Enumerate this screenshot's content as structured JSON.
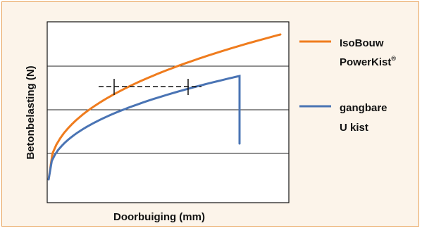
{
  "chart_data": {
    "type": "line",
    "xlabel": "Doorbuiging (mm)",
    "ylabel": "Betonbelasting (N)",
    "grid": true,
    "ticks_shown": false,
    "series": [
      {
        "name_lines": [
          "IsoBouw",
          "PowerKist"
        ],
        "name_superscript": "®",
        "color": "#ef7c1e",
        "shape": "concave-rising curve from origin, no drop"
      },
      {
        "name_lines": [
          "gangbare",
          "U kist"
        ],
        "color": "#4a74b4",
        "shape": "concave-rising curve, then vertical drop at the end"
      }
    ],
    "annotation": {
      "style": "dashed horizontal reference line with two vertical cross ticks",
      "color": "#111111"
    }
  }
}
